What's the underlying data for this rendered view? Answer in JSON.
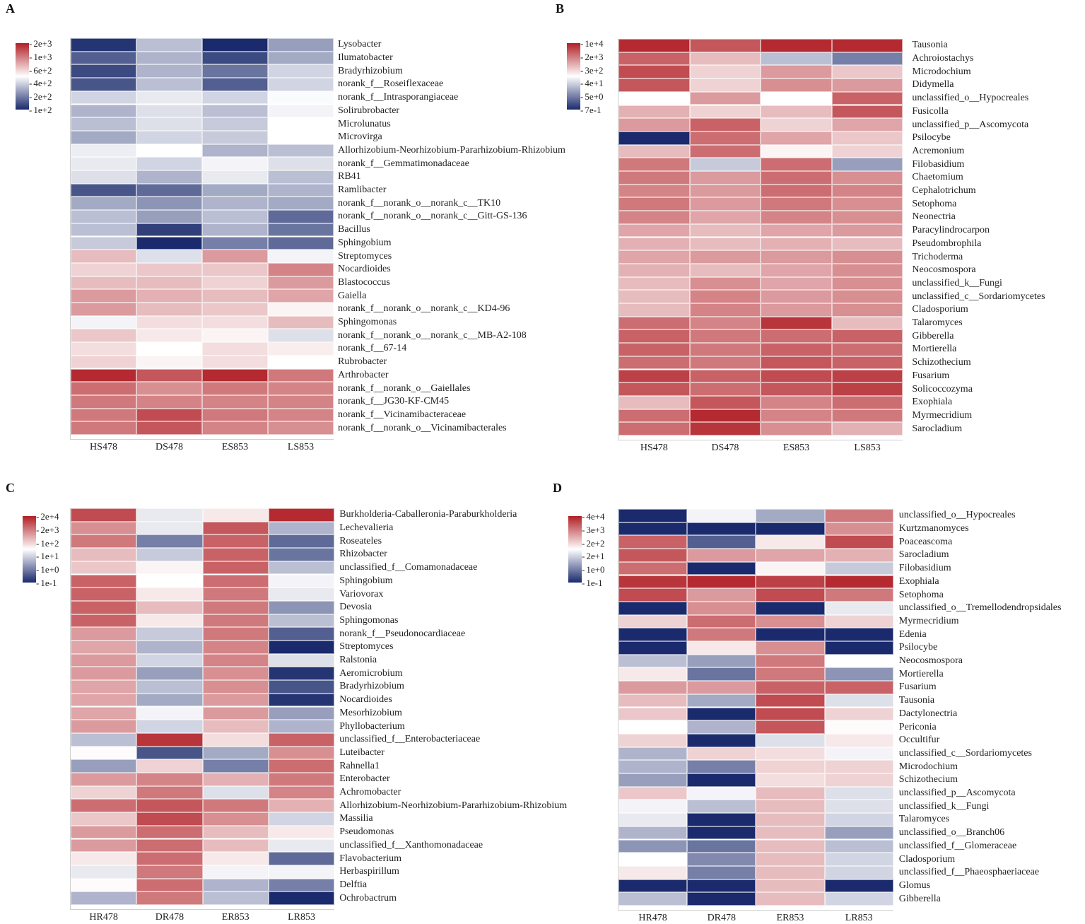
{
  "colors": {
    "high": "#b01f25",
    "mid": "#ffffff",
    "low": "#1a2a6c"
  },
  "chart_data": [
    {
      "type": "heatmap",
      "panel": "A",
      "legend_ticks": [
        "2e+3",
        "1e+3",
        "6e+2",
        "4e+2",
        "2e+2",
        "1e+2"
      ],
      "columns": [
        "HS478",
        "DS478",
        "ES853",
        "LS853"
      ],
      "rows": [
        "Lysobacter",
        "Ilumatobacter",
        "Bradyrhizobium",
        "norank_f__Roseiflexaceae",
        "norank_f__Intrasporangiaceae",
        "Solirubrobacter",
        "Microlunatus",
        "Microvirga",
        "Allorhizobium-Neorhizobium-Pararhizobium-Rhizobium",
        "norank_f__Gemmatimonadaceae",
        "RB41",
        "Ramlibacter",
        "norank_f__norank_o__norank_c__TK10",
        "norank_f__norank_o__norank_c__Gitt-GS-136",
        "Bacillus",
        "Sphingobium",
        "Streptomyces",
        "Nocardioides",
        "Blastococcus",
        "Gaiella",
        "norank_f__norank_o__norank_c__KD4-96",
        "Sphingomonas",
        "norank_f__norank_o__norank_c__MB-A2-108",
        "norank_f__67-14",
        "Rubrobacter",
        "Arthrobacter",
        "norank_f__norank_o__Gaiellales",
        "norank_f__JG30-KF-CM45",
        "norank_f__Vicinamibacteraceae",
        "norank_f__norank_o__Vicinamibacterales"
      ],
      "values": [
        [
          -0.95,
          -0.3,
          -1.0,
          -0.45
        ],
        [
          -0.75,
          -0.35,
          -0.85,
          -0.4
        ],
        [
          -0.85,
          -0.35,
          -0.65,
          -0.2
        ],
        [
          -0.8,
          -0.3,
          -0.75,
          -0.2
        ],
        [
          -0.2,
          -0.1,
          -0.2,
          -0.02
        ],
        [
          -0.35,
          -0.15,
          -0.3,
          -0.05
        ],
        [
          -0.3,
          -0.15,
          -0.25,
          0.0
        ],
        [
          -0.4,
          -0.2,
          -0.25,
          0.0
        ],
        [
          -0.08,
          0.0,
          -0.35,
          -0.3
        ],
        [
          -0.1,
          -0.2,
          -0.05,
          -0.15
        ],
        [
          -0.15,
          -0.35,
          -0.1,
          -0.3
        ],
        [
          -0.8,
          -0.7,
          -0.4,
          -0.35
        ],
        [
          -0.4,
          -0.5,
          -0.35,
          -0.4
        ],
        [
          -0.3,
          -0.45,
          -0.3,
          -0.7
        ],
        [
          -0.3,
          -0.9,
          -0.35,
          -0.65
        ],
        [
          -0.25,
          -1.0,
          -0.6,
          -0.7
        ],
        [
          0.3,
          -0.15,
          0.45,
          -0.05
        ],
        [
          0.2,
          0.25,
          0.25,
          0.55
        ],
        [
          0.3,
          0.3,
          0.2,
          0.45
        ],
        [
          0.45,
          0.35,
          0.3,
          0.4
        ],
        [
          0.45,
          0.3,
          0.25,
          0.05
        ],
        [
          -0.05,
          0.15,
          0.15,
          0.3
        ],
        [
          0.25,
          0.1,
          0.05,
          -0.15
        ],
        [
          0.15,
          0.0,
          0.15,
          0.08
        ],
        [
          0.2,
          0.05,
          0.15,
          0.0
        ],
        [
          0.95,
          0.75,
          0.95,
          0.6
        ],
        [
          0.65,
          0.5,
          0.6,
          0.55
        ],
        [
          0.6,
          0.55,
          0.55,
          0.55
        ],
        [
          0.6,
          0.8,
          0.6,
          0.55
        ],
        [
          0.6,
          0.75,
          0.55,
          0.5
        ]
      ]
    },
    {
      "type": "heatmap",
      "panel": "B",
      "legend_ticks": [
        "1e+4",
        "2e+3",
        "3e+2",
        "4e+1",
        "5e+0",
        "7e-1"
      ],
      "columns": [
        "HS478",
        "DS478",
        "ES853",
        "LS853"
      ],
      "rows": [
        "Tausonia",
        "Achroiostachys",
        "Microdochium",
        "Didymella",
        "unclassified_o__Hypocreales",
        "Fusicolla",
        "unclassified_p__Ascomycota",
        "Psilocybe",
        "Acremonium",
        "Filobasidium",
        "Chaetomium",
        "Cephalotrichum",
        "Setophoma",
        "Neonectria",
        "Paracylindrocarpon",
        "Pseudombrophila",
        "Trichoderma",
        "Neocosmospora",
        "unclassified_k__Fungi",
        "unclassified_c__Sordariomycetes",
        "Cladosporium",
        "Talaromyces",
        "Gibberella",
        "Mortierella",
        "Schizothecium",
        "Fusarium",
        "Solicoccozyma",
        "Exophiala",
        "Myrmecridium",
        "Sarocladium"
      ],
      "values": [
        [
          0.95,
          0.75,
          0.95,
          0.95
        ],
        [
          0.7,
          0.3,
          -0.3,
          -0.6
        ],
        [
          0.8,
          0.2,
          0.45,
          0.25
        ],
        [
          0.75,
          0.2,
          0.5,
          0.45
        ],
        [
          0.0,
          0.45,
          0.0,
          0.7
        ],
        [
          0.35,
          0.2,
          0.3,
          0.75
        ],
        [
          0.45,
          0.7,
          0.2,
          0.4
        ],
        [
          -1.0,
          0.65,
          0.4,
          0.25
        ],
        [
          0.3,
          0.65,
          0.05,
          0.2
        ],
        [
          0.6,
          -0.25,
          0.65,
          -0.45
        ],
        [
          0.6,
          0.45,
          0.65,
          0.5
        ],
        [
          0.55,
          0.45,
          0.65,
          0.55
        ],
        [
          0.6,
          0.45,
          0.6,
          0.5
        ],
        [
          0.55,
          0.4,
          0.55,
          0.5
        ],
        [
          0.4,
          0.3,
          0.4,
          0.45
        ],
        [
          0.35,
          0.3,
          0.35,
          0.3
        ],
        [
          0.4,
          0.45,
          0.45,
          0.5
        ],
        [
          0.35,
          0.3,
          0.4,
          0.5
        ],
        [
          0.3,
          0.5,
          0.4,
          0.5
        ],
        [
          0.3,
          0.55,
          0.45,
          0.5
        ],
        [
          0.3,
          0.55,
          0.45,
          0.5
        ],
        [
          0.65,
          0.55,
          0.9,
          0.3
        ],
        [
          0.7,
          0.6,
          0.65,
          0.7
        ],
        [
          0.7,
          0.6,
          0.7,
          0.65
        ],
        [
          0.65,
          0.6,
          0.75,
          0.7
        ],
        [
          0.85,
          0.7,
          0.8,
          0.85
        ],
        [
          0.75,
          0.65,
          0.75,
          0.85
        ],
        [
          0.3,
          0.75,
          0.55,
          0.65
        ],
        [
          0.65,
          0.95,
          0.55,
          0.6
        ],
        [
          0.65,
          0.9,
          0.5,
          0.35
        ]
      ]
    },
    {
      "type": "heatmap",
      "panel": "C",
      "legend_ticks": [
        "2e+4",
        "2e+3",
        "1e+2",
        "1e+1",
        "1e+0",
        "1e-1"
      ],
      "columns": [
        "HR478",
        "DR478",
        "ER853",
        "LR853"
      ],
      "rows": [
        "Burkholderia-Caballeronia-Paraburkholderia",
        "Lechevalieria",
        "Roseateles",
        "Rhizobacter",
        "unclassified_f__Comamonadaceae",
        "Sphingobium",
        "Variovorax",
        "Devosia",
        "Sphingomonas",
        "norank_f__Pseudonocardiaceae",
        "Streptomyces",
        "Ralstonia",
        "Aeromicrobium",
        "Bradyrhizobium",
        "Nocardioides",
        "Mesorhizobium",
        "Phyllobacterium",
        "unclassified_f__Enterobacteriaceae",
        "Luteibacter",
        "Rahnella1",
        "Enterobacter",
        "Achromobacter",
        "Allorhizobium-Neorhizobium-Pararhizobium-Rhizobium",
        "Massilia",
        "Pseudomonas",
        "unclassified_f__Xanthomonadaceae",
        "Flavobacterium",
        "Herbaspirillum",
        "Delftia",
        "Ochrobactrum"
      ],
      "values": [
        [
          0.8,
          -0.1,
          0.1,
          0.95
        ],
        [
          0.5,
          -0.1,
          0.75,
          -0.35
        ],
        [
          0.6,
          -0.6,
          0.7,
          -0.7
        ],
        [
          0.3,
          -0.25,
          0.7,
          -0.65
        ],
        [
          0.25,
          0.05,
          0.7,
          -0.3
        ],
        [
          0.7,
          0.0,
          0.65,
          -0.05
        ],
        [
          0.7,
          0.1,
          0.6,
          -0.1
        ],
        [
          0.7,
          0.3,
          0.6,
          -0.5
        ],
        [
          0.7,
          0.1,
          0.6,
          -0.3
        ],
        [
          0.45,
          -0.25,
          0.6,
          -0.75
        ],
        [
          0.4,
          -0.35,
          0.55,
          -1.0
        ],
        [
          0.45,
          -0.2,
          0.55,
          -0.15
        ],
        [
          0.45,
          -0.45,
          0.5,
          -0.95
        ],
        [
          0.4,
          -0.3,
          0.5,
          -0.8
        ],
        [
          0.4,
          -0.4,
          0.45,
          -0.95
        ],
        [
          0.4,
          -0.05,
          0.45,
          -0.45
        ],
        [
          0.45,
          -0.2,
          0.3,
          -0.35
        ],
        [
          -0.3,
          0.9,
          0.15,
          0.7
        ],
        [
          0.02,
          -0.8,
          -0.4,
          0.5
        ],
        [
          -0.45,
          0.2,
          -0.6,
          0.65
        ],
        [
          0.45,
          0.55,
          0.35,
          0.6
        ],
        [
          0.2,
          0.6,
          -0.15,
          0.55
        ],
        [
          0.65,
          0.75,
          0.6,
          0.35
        ],
        [
          0.25,
          0.8,
          0.5,
          -0.2
        ],
        [
          0.45,
          0.65,
          0.3,
          0.1
        ],
        [
          0.45,
          0.65,
          0.3,
          -0.1
        ],
        [
          0.1,
          0.65,
          0.1,
          -0.7
        ],
        [
          -0.1,
          0.6,
          -0.05,
          -0.05
        ],
        [
          0.02,
          0.65,
          -0.35,
          -0.6
        ],
        [
          -0.35,
          0.6,
          -0.3,
          -1.0
        ]
      ]
    },
    {
      "type": "heatmap",
      "panel": "D",
      "legend_ticks": [
        "4e+4",
        "3e+3",
        "2e+2",
        "2e+1",
        "1e+0",
        "1e-1"
      ],
      "columns": [
        "HR478",
        "DR478",
        "ER853",
        "LR853"
      ],
      "rows": [
        "unclassified_o__Hypocreales",
        "Kurtzmanomyces",
        "Poaceascoma",
        "Sarocladium",
        "Filobasidium",
        "Exophiala",
        "Setophoma",
        "unclassified_o__Tremellodendropsidales",
        "Myrmecridium",
        "Edenia",
        "Psilocybe",
        "Neocosmospora",
        "Mortierella",
        "Fusarium",
        "Tausonia",
        "Dactylonectria",
        "Periconia",
        "Occultifur",
        "unclassified_c__Sordariomycetes",
        "Microdochium",
        "Schizothecium",
        "unclassified_p__Ascomycota",
        "unclassified_k__Fungi",
        "Talaromyces",
        "unclassified_o__Branch06",
        "unclassified_f__Glomeraceae",
        "Cladosporium",
        "unclassified_f__Phaeosphaeriaceae",
        "Glomus",
        "Gibberella"
      ],
      "values": [
        [
          -1.0,
          -0.05,
          -0.4,
          0.6
        ],
        [
          -1.0,
          -1.0,
          -1.0,
          0.5
        ],
        [
          0.7,
          -0.75,
          0.1,
          0.8
        ],
        [
          0.75,
          0.45,
          0.4,
          0.35
        ],
        [
          0.65,
          -1.0,
          0.05,
          -0.25
        ],
        [
          0.9,
          0.95,
          0.85,
          0.95
        ],
        [
          0.8,
          0.45,
          0.8,
          0.6
        ],
        [
          -1.0,
          0.5,
          -1.0,
          -0.1
        ],
        [
          0.2,
          0.65,
          0.5,
          0.2
        ],
        [
          -1.0,
          0.6,
          -1.0,
          -1.0
        ],
        [
          -1.0,
          0.1,
          0.5,
          -1.0
        ],
        [
          -0.3,
          -0.45,
          0.6,
          0.0
        ],
        [
          0.1,
          -0.65,
          0.6,
          -0.5
        ],
        [
          0.45,
          0.45,
          0.7,
          0.7
        ],
        [
          0.3,
          -0.4,
          0.8,
          -0.15
        ],
        [
          0.25,
          -1.0,
          0.8,
          0.2
        ],
        [
          0.0,
          -0.35,
          0.75,
          0.02
        ],
        [
          0.2,
          -1.0,
          -0.15,
          0.1
        ],
        [
          -0.35,
          0.2,
          0.15,
          -0.05
        ],
        [
          -0.35,
          -0.6,
          0.2,
          0.2
        ],
        [
          -0.45,
          -1.0,
          0.15,
          0.2
        ],
        [
          0.25,
          -0.05,
          0.3,
          -0.15
        ],
        [
          -0.05,
          -0.3,
          0.3,
          -0.15
        ],
        [
          -0.1,
          -1.0,
          0.3,
          -0.2
        ],
        [
          -0.35,
          -1.0,
          0.3,
          -0.45
        ],
        [
          -0.5,
          -0.65,
          0.3,
          -0.3
        ],
        [
          0.0,
          -0.55,
          0.3,
          -0.2
        ],
        [
          0.1,
          -0.6,
          0.3,
          -0.2
        ],
        [
          -1.0,
          -1.0,
          0.3,
          -1.0
        ],
        [
          -0.3,
          -1.0,
          0.3,
          -0.2
        ]
      ]
    }
  ]
}
